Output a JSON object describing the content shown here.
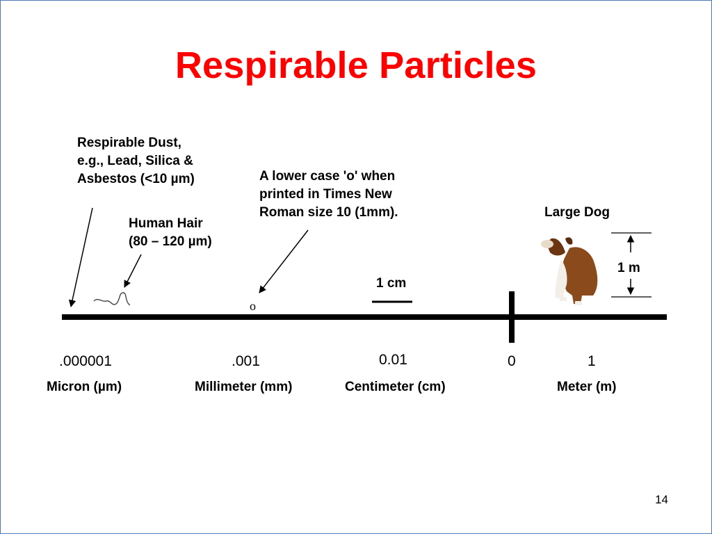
{
  "slide": {
    "title": "Respirable Particles",
    "page_number": "14"
  },
  "annotations": {
    "respirable_dust": "Respirable Dust,\ne.g., Lead, Silica &\nAsbestos (<10 µm)",
    "human_hair": "Human Hair\n(80 – 120 µm)",
    "lowercase_o": "A lower case 'o' when\nprinted in Times New\nRoman size 10 (1mm).",
    "large_dog": "Large Dog",
    "one_cm": "1 cm",
    "one_m": "1 m",
    "o_glyph": "o"
  },
  "scale": {
    "values": [
      ".000001",
      ".001",
      "0.01",
      "0",
      "1"
    ],
    "units": [
      "Micron (µm)",
      "Millimeter (mm)",
      "Centimeter (cm)",
      "Meter (m)"
    ]
  },
  "colors": {
    "title": "#ff0000",
    "border": "#4a7ab8",
    "axis": "#000000",
    "dog_body": "#8b4a1c"
  }
}
